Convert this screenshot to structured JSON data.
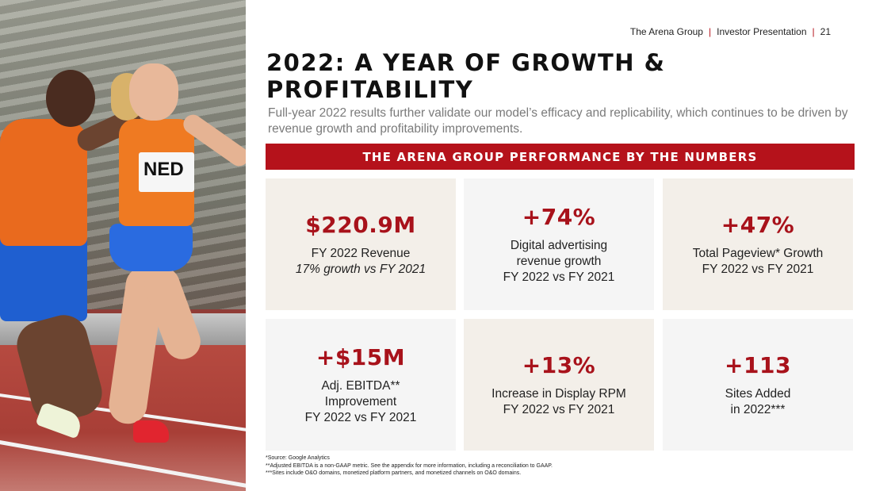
{
  "header": {
    "company": "The Arena Group",
    "section": "Investor Presentation",
    "page_number": "21"
  },
  "photo": {
    "bib_text": "NED"
  },
  "title": "2022: A YEAR OF GROWTH & PROFITABILITY",
  "subtitle": "Full-year 2022 results further validate our model’s efficacy and replicability, which continues to be driven by revenue growth and profitability improvements.",
  "banner": "THE ARENA GROUP PERFORMANCE BY THE NUMBERS",
  "metrics": [
    {
      "value": "$220.9M",
      "line1": "FY 2022 Revenue",
      "line2": "17% growth vs FY 2021",
      "line3": ""
    },
    {
      "value": "+74%",
      "line1": "Digital advertising",
      "line2": "revenue growth",
      "line3": "FY 2022 vs FY 2021"
    },
    {
      "value": "+47%",
      "line1": "Total Pageview* Growth",
      "line2": "FY 2022 vs FY 2021",
      "line3": ""
    },
    {
      "value": "+$15M",
      "line1": "Adj. EBITDA**",
      "line2": "Improvement",
      "line3": "FY 2022 vs FY 2021"
    },
    {
      "value": "+13%",
      "line1": "Increase in Display RPM",
      "line2": "FY 2022 vs FY 2021",
      "line3": ""
    },
    {
      "value": "+113",
      "line1": "Sites Added",
      "line2": "in 2022***",
      "line3": ""
    }
  ],
  "footnotes": [
    "*Source: Google Analytics",
    "**Adjusted EBITDA is a non-GAAP metric. See the appendix for more information, including a reconciliation to GAAP.",
    "***Sites include O&O domains, monetized platform partners, and monetized channels on O&O domains."
  ],
  "colors": {
    "accent": "#b5121b",
    "card_beige": "#f3efe9",
    "card_gray": "#f5f5f5"
  }
}
